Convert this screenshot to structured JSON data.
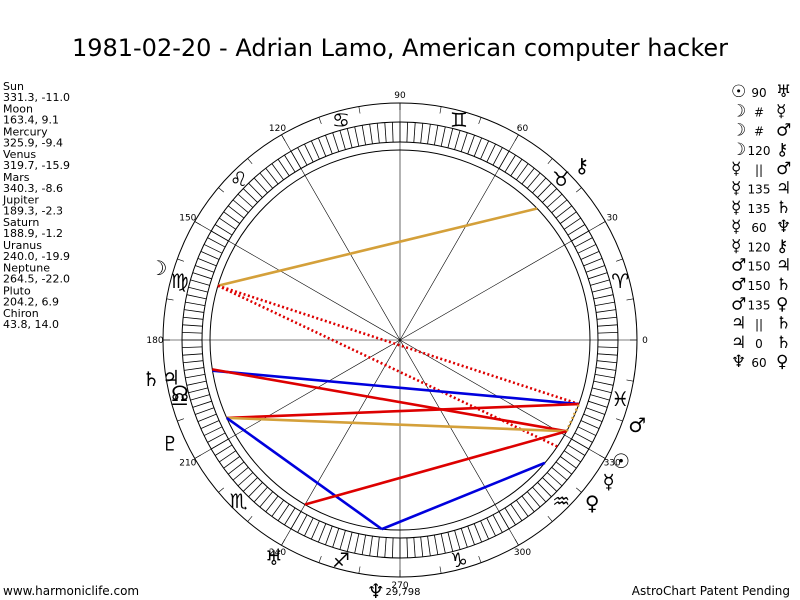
{
  "title": "1981-02-20 - Adrian Lamo, American computer hacker",
  "planets": [
    {
      "name": "Sun",
      "lon": 331.3,
      "lat": -11.0,
      "coords": "331.3, -11.0",
      "glyph": "☉"
    },
    {
      "name": "Moon",
      "lon": 163.4,
      "lat": 9.1,
      "coords": "163.4, 9.1",
      "glyph": "☽"
    },
    {
      "name": "Mercury",
      "lon": 325.9,
      "lat": -9.4,
      "coords": "325.9, -9.4",
      "glyph": "☿"
    },
    {
      "name": "Venus",
      "lon": 319.7,
      "lat": -15.9,
      "coords": "319.7, -15.9",
      "glyph": "♀"
    },
    {
      "name": "Mars",
      "lon": 340.3,
      "lat": -8.6,
      "coords": "340.3, -8.6",
      "glyph": "♂"
    },
    {
      "name": "Jupiter",
      "lon": 189.3,
      "lat": -2.3,
      "coords": "189.3, -2.3",
      "glyph": "♃"
    },
    {
      "name": "Saturn",
      "lon": 188.9,
      "lat": -1.2,
      "coords": "188.9, -1.2",
      "glyph": "♄"
    },
    {
      "name": "Uranus",
      "lon": 240.0,
      "lat": -19.9,
      "coords": "240.0, -19.9",
      "glyph": "♅"
    },
    {
      "name": "Neptune",
      "lon": 264.5,
      "lat": -22.0,
      "coords": "264.5, -22.0",
      "glyph": "♆"
    },
    {
      "name": "Pluto",
      "lon": 204.2,
      "lat": 6.9,
      "coords": "204.2, 6.9",
      "glyph": "♇"
    },
    {
      "name": "Chiron",
      "lon": 43.8,
      "lat": 14.0,
      "coords": "43.8, 14.0",
      "glyph": "⚷"
    }
  ],
  "degree_labels": [
    "0",
    "30",
    "60",
    "90",
    "120",
    "150",
    "180",
    "210",
    "240",
    "270",
    "300",
    "330"
  ],
  "zodiac_signs": [
    "♈",
    "♉",
    "♊",
    "♋",
    "♌",
    "♍",
    "♎",
    "♏",
    "♐",
    "♑",
    "♒",
    "♓"
  ],
  "node_glyph": "☊",
  "bottom_value": "29,798",
  "aspects_list": [
    {
      "p1": "☉",
      "asp": "90",
      "p2": "♅"
    },
    {
      "p1": "☽",
      "asp": "#",
      "p2": "☿"
    },
    {
      "p1": "☽",
      "asp": "#",
      "p2": "♂"
    },
    {
      "p1": "☽",
      "asp": "120",
      "p2": "⚷"
    },
    {
      "p1": "☿",
      "asp": "||",
      "p2": "♂"
    },
    {
      "p1": "☿",
      "asp": "135",
      "p2": "♃"
    },
    {
      "p1": "☿",
      "asp": "135",
      "p2": "♄"
    },
    {
      "p1": "☿",
      "asp": "60",
      "p2": "♆"
    },
    {
      "p1": "☿",
      "asp": "120",
      "p2": "⚷"
    },
    {
      "p1": "♂",
      "asp": "150",
      "p2": "♃"
    },
    {
      "p1": "♂",
      "asp": "150",
      "p2": "♄"
    },
    {
      "p1": "♂",
      "asp": "135",
      "p2": "♀"
    },
    {
      "p1": "♃",
      "asp": "||",
      "p2": "♄"
    },
    {
      "p1": "♃",
      "asp": "0",
      "p2": "♄"
    },
    {
      "p1": "♆",
      "asp": "60",
      "p2": "♀"
    }
  ],
  "aspect_lines": [
    {
      "a": "Moon",
      "b": "Chiron",
      "color": "#d4a03a",
      "dash": false
    },
    {
      "a": "Moon",
      "b": "Mercury",
      "color": "#dd0000",
      "dash": true
    },
    {
      "a": "Moon",
      "b": "Mars",
      "color": "#dd0000",
      "dash": true
    },
    {
      "a": "Jupiter",
      "b": "Mars",
      "color": "#0000dd",
      "dash": false
    },
    {
      "a": "Saturn",
      "b": "Sun",
      "color": "#dd0000",
      "dash": false
    },
    {
      "a": "Pluto",
      "b": "Mars",
      "color": "#dd0000",
      "dash": false
    },
    {
      "a": "Pluto",
      "b": "Sun",
      "color": "#d4a03a",
      "dash": false
    },
    {
      "a": "Pluto",
      "b": "Neptune",
      "color": "#0000dd",
      "dash": false
    },
    {
      "a": "Neptune",
      "b": "Venus",
      "color": "#0000dd",
      "dash": false
    },
    {
      "a": "Uranus",
      "b": "Sun",
      "color": "#dd0000",
      "dash": false
    },
    {
      "a": "Sun",
      "b": "Mars",
      "color": "#d4a03a",
      "dash": true
    }
  ],
  "footer_left": "www.harmoniclife.com",
  "footer_right": "AstroChart Patent Pending"
}
